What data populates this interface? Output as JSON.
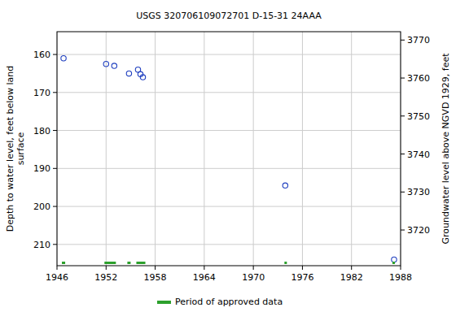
{
  "chart_data": {
    "type": "scatter",
    "title": "USGS 320706109072701 D-15-31 24AAA",
    "xlabel": "",
    "ylabel": "Depth to water level, feet below land\nsurface",
    "y2label": "Groundwater level above NGVD 1929, feet",
    "xlim": [
      1946,
      1988
    ],
    "xticks": [
      1946,
      1952,
      1958,
      1964,
      1970,
      1976,
      1982,
      1988
    ],
    "ylim": [
      154,
      215.6
    ],
    "yticks": [
      160,
      170,
      180,
      190,
      200,
      210
    ],
    "y2lim": [
      3772.2,
      3710.6
    ],
    "y2ticks": [
      3720,
      3730,
      3740,
      3750,
      3760,
      3770
    ],
    "grid": true,
    "legend": "bottom",
    "series": [
      {
        "type": "scatter",
        "marker": "open-circle",
        "color": "#1f3fbf",
        "x": [
          1946.8,
          1952.0,
          1953.0,
          1954.8,
          1955.9,
          1956.2,
          1956.5,
          1973.9,
          1987.2
        ],
        "values": [
          161,
          162.5,
          163,
          165,
          164,
          165.2,
          166,
          194.5,
          214
        ]
      },
      {
        "type": "span",
        "name": "Period of approved data",
        "color": "#2ca02c",
        "values": [
          [
            1946.6,
            1947.0
          ],
          [
            1951.8,
            1953.2
          ],
          [
            1954.6,
            1955.0
          ],
          [
            1955.7,
            1956.8
          ],
          [
            1973.8,
            1974.1
          ],
          [
            1987.0,
            1987.3
          ]
        ]
      }
    ]
  }
}
